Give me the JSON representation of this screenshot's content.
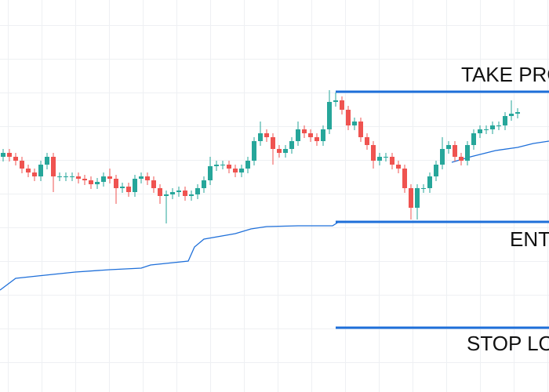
{
  "chart_data": {
    "type": "candlestick",
    "ylim": [
      0,
      500
    ],
    "up_color": "#26a69a",
    "down_color": "#ef5350",
    "open": [
      300,
      305,
      300,
      295,
      285,
      280,
      275,
      290,
      300,
      275,
      275,
      275,
      275,
      272,
      270,
      265,
      268,
      275,
      272,
      260,
      262,
      255,
      272,
      275,
      270,
      260,
      250,
      252,
      255,
      257,
      250,
      252,
      260,
      270,
      288,
      290,
      290,
      285,
      280,
      285,
      295,
      320,
      330,
      325,
      310,
      305,
      310,
      320,
      335,
      330,
      325,
      320,
      335,
      370,
      372,
      360,
      340,
      345,
      325,
      315,
      295,
      300,
      300,
      290,
      285,
      260,
      235,
      260,
      260,
      275,
      290,
      310,
      315,
      300,
      295,
      315,
      330,
      335,
      335,
      340,
      340,
      352,
      355
    ],
    "high": [
      310,
      310,
      305,
      300,
      290,
      285,
      295,
      305,
      305,
      280,
      280,
      280,
      280,
      277,
      275,
      273,
      280,
      285,
      277,
      267,
      267,
      277,
      280,
      280,
      275,
      265,
      257,
      260,
      262,
      262,
      257,
      265,
      275,
      300,
      295,
      295,
      295,
      290,
      290,
      300,
      325,
      345,
      335,
      330,
      315,
      315,
      325,
      345,
      340,
      335,
      330,
      340,
      385,
      382,
      377,
      365,
      350,
      350,
      330,
      320,
      305,
      305,
      305,
      295,
      290,
      265,
      265,
      265,
      280,
      295,
      325,
      320,
      320,
      305,
      320,
      335,
      340,
      340,
      345,
      345,
      357,
      372,
      362
    ],
    "low": [
      294,
      294,
      289,
      279,
      274,
      269,
      269,
      284,
      255,
      269,
      269,
      269,
      266,
      264,
      259,
      259,
      262,
      266,
      240,
      254,
      249,
      249,
      266,
      264,
      254,
      240,
      215,
      246,
      249,
      244,
      244,
      246,
      254,
      264,
      282,
      284,
      279,
      274,
      274,
      279,
      289,
      314,
      319,
      290,
      299,
      299,
      304,
      314,
      324,
      319,
      314,
      314,
      329,
      364,
      354,
      334,
      334,
      319,
      309,
      285,
      289,
      294,
      284,
      279,
      254,
      220,
      220,
      254,
      254,
      269,
      284,
      304,
      294,
      289,
      289,
      309,
      324,
      329,
      329,
      334,
      334,
      346,
      349
    ],
    "close": [
      305,
      300,
      295,
      285,
      280,
      275,
      290,
      300,
      275,
      275,
      275,
      275,
      272,
      270,
      265,
      268,
      275,
      272,
      260,
      262,
      255,
      272,
      275,
      270,
      260,
      250,
      252,
      255,
      257,
      250,
      252,
      260,
      270,
      288,
      290,
      290,
      285,
      280,
      285,
      295,
      320,
      330,
      325,
      310,
      305,
      310,
      320,
      335,
      330,
      325,
      320,
      335,
      370,
      372,
      360,
      340,
      345,
      325,
      315,
      295,
      300,
      300,
      290,
      285,
      260,
      235,
      260,
      260,
      275,
      290,
      310,
      315,
      300,
      295,
      315,
      330,
      335,
      335,
      340,
      340,
      352,
      355,
      357
    ],
    "xlim": [
      0,
      87.5
    ],
    "moving_average": {
      "color": "#1e6fd9",
      "x": [
        0,
        2.5,
        6,
        12,
        17.5,
        22.5,
        24,
        30,
        31,
        32.5,
        37.5,
        40,
        42.5,
        47.5,
        53,
        54,
        71,
        null,
        72,
        75,
        79,
        82.5,
        85,
        87.5
      ],
      "values": [
        130,
        145,
        148,
        153,
        156,
        158,
        162,
        167,
        185,
        195,
        202,
        208,
        211,
        212,
        212,
        217,
        217,
        null,
        293,
        300,
        308,
        312,
        317,
        320
      ]
    },
    "level_color": "#1e6fd9",
    "levels": [
      {
        "label": "TAKE PRO",
        "value": 383
      },
      {
        "label": "ENT",
        "value": 217
      },
      {
        "label": "STOP LO",
        "value": 82
      }
    ]
  }
}
